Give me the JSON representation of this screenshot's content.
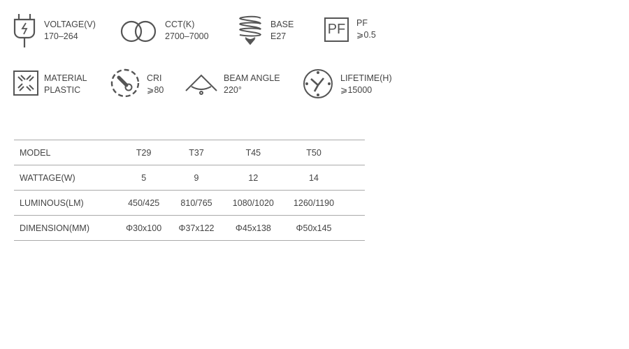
{
  "specs": [
    {
      "icon": "plug-icon",
      "label": "VOLTAGE(V)",
      "value": "170–264"
    },
    {
      "icon": "double-circle-icon",
      "label": "CCT(K)",
      "value": "2700–7000"
    },
    {
      "icon": "bulb-base-icon",
      "label": "BASE",
      "value": "E27"
    },
    {
      "icon": "pf-box-icon",
      "icon_text": "PF",
      "label": "PF",
      "value": "⩾0.5"
    },
    {
      "icon": "material-icon",
      "label": "MATERIAL",
      "value": "PLASTIC"
    },
    {
      "icon": "thermometer-dial-icon",
      "label": "CRI",
      "value": "⩾80"
    },
    {
      "icon": "beam-angle-icon",
      "label": "BEAM ANGLE",
      "value": "220°"
    },
    {
      "icon": "clock-icon",
      "label": "LIFETIME(H)",
      "value": "⩾15000"
    }
  ],
  "table": {
    "rows": [
      {
        "label": "MODEL",
        "cells": [
          "T29",
          "T37",
          "T45",
          "T50"
        ]
      },
      {
        "label": "WATTAGE(W)",
        "cells": [
          "5",
          "9",
          "12",
          "14"
        ]
      },
      {
        "label": "LUMINOUS(LM)",
        "cells": [
          "450/425",
          "810/765",
          "1080/1020",
          "1260/1190"
        ]
      },
      {
        "label": "DIMENSION(MM)",
        "cells": [
          "Φ30x100",
          "Φ37x122",
          "Φ45x138",
          "Φ50x145"
        ]
      }
    ]
  }
}
